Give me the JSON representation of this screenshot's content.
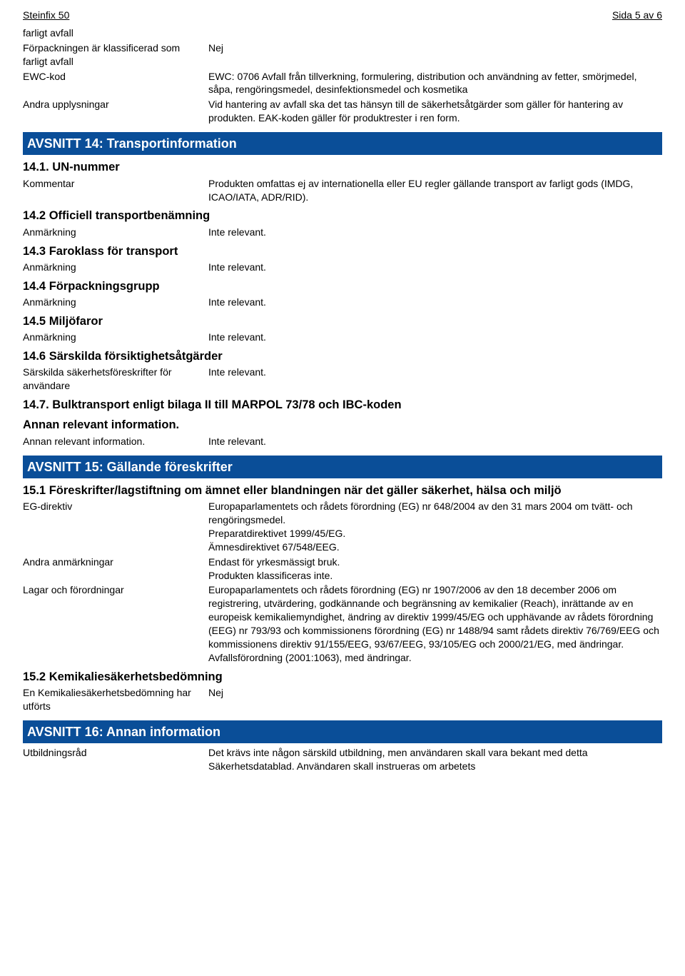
{
  "header": {
    "doc_title": "Steinfix 50",
    "page_label": "Sida 5 av 6"
  },
  "intro_rows": [
    {
      "label": "farligt avfall",
      "value": ""
    },
    {
      "label": "Förpackningen är klassificerad som farligt avfall",
      "value": "Nej"
    },
    {
      "label": "EWC-kod",
      "value": "EWC: 0706 Avfall från tillverkning, formulering, distribution och användning av fetter, smörjmedel, såpa, rengöringsmedel, desinfektionsmedel och kosmetika"
    },
    {
      "label": "Andra upplysningar",
      "value": "Vid hantering av avfall ska det tas hänsyn till de säkerhetsåtgärder som gäller för hantering av produkten. EAK-koden gäller för produktrester i ren form."
    }
  ],
  "section14": {
    "banner": "AVSNITT 14: Transportinformation",
    "s1": {
      "head": "14.1. UN-nummer",
      "row": {
        "label": "Kommentar",
        "value": "Produkten omfattas ej av internationella eller EU regler gällande transport av farligt gods (IMDG, ICAO/IATA, ADR/RID)."
      }
    },
    "s2": {
      "head": "14.2 Officiell transportbenämning",
      "row": {
        "label": "Anmärkning",
        "value": "Inte relevant."
      }
    },
    "s3": {
      "head": "14.3 Faroklass för transport",
      "row": {
        "label": "Anmärkning",
        "value": "Inte relevant."
      }
    },
    "s4": {
      "head": "14.4 Förpackningsgrupp",
      "row": {
        "label": "Anmärkning",
        "value": "Inte relevant."
      }
    },
    "s5": {
      "head": "14.5 Miljöfaror",
      "row": {
        "label": "Anmärkning",
        "value": "Inte relevant."
      }
    },
    "s6": {
      "head": "14.6 Särskilda försiktighetsåtgärder",
      "row": {
        "label": "Särskilda säkerhetsföreskrifter för användare",
        "value": "Inte relevant."
      }
    },
    "s7": {
      "head": "14.7. Bulktransport enligt bilaga II till MARPOL 73/78 och IBC-koden",
      "sub": "Annan relevant information.",
      "row": {
        "label": "Annan relevant information.",
        "value": "Inte relevant."
      }
    }
  },
  "section15": {
    "banner": "AVSNITT 15: Gällande föreskrifter",
    "s1": {
      "head": "15.1 Föreskrifter/lagstiftning om ämnet eller blandningen när det gäller säkerhet, hälsa och miljö",
      "rows": [
        {
          "label": "EG-direktiv",
          "value": "Europaparlamentets och rådets förordning (EG) nr 648/2004 av den 31 mars 2004 om tvätt- och rengöringsmedel.\nPreparatdirektivet 1999/45/EG.\nÄmnesdirektivet 67/548/EEG."
        },
        {
          "label": "Andra anmärkningar",
          "value": "Endast för yrkesmässigt bruk.\nProdukten klassificeras inte."
        },
        {
          "label": "Lagar och förordningar",
          "value": "Europaparlamentets och rådets förordning (EG) nr 1907/2006 av den 18 december 2006 om registrering, utvärdering, godkännande och begränsning av kemikalier (Reach), inrättande av en europeisk kemikaliemyndighet, ändring av direktiv 1999/45/EG och upphävande av rådets förordning (EEG) nr 793/93 och kommissionens förordning (EG) nr 1488/94 samt rådets direktiv 76/769/EEG och kommissionens direktiv 91/155/EEG, 93/67/EEG, 93/105/EG och 2000/21/EG, med ändringar.\nAvfallsförordning (2001:1063), med ändringar."
        }
      ]
    },
    "s2": {
      "head": "15.2 Kemikaliesäkerhetsbedömning",
      "row": {
        "label": "En Kemikaliesäkerhetsbedömning har utförts",
        "value": "Nej"
      }
    }
  },
  "section16": {
    "banner": "AVSNITT 16: Annan information",
    "row": {
      "label": "Utbildningsråd",
      "value": "Det krävs inte någon särskild utbildning, men användaren skall vara bekant med detta Säkerhetsdatablad. Användaren skall instrueras om arbetets"
    }
  }
}
